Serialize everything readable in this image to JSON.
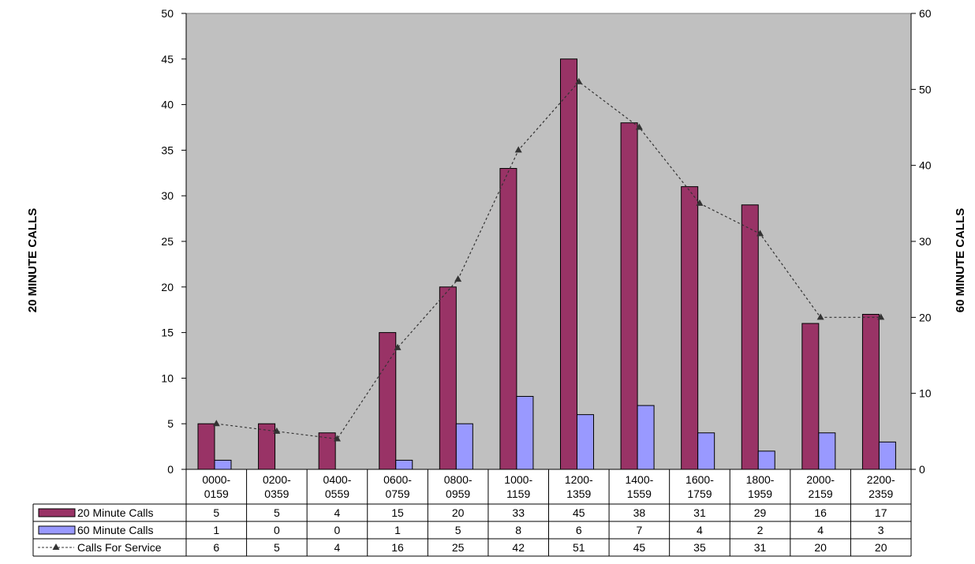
{
  "chart_data": {
    "type": "bar",
    "categories": [
      [
        "0000-",
        "0159"
      ],
      [
        "0200-",
        "0359"
      ],
      [
        "0400-",
        "0559"
      ],
      [
        "0600-",
        "0759"
      ],
      [
        "0800-",
        "0959"
      ],
      [
        "1000-",
        "1159"
      ],
      [
        "1200-",
        "1359"
      ],
      [
        "1400-",
        "1559"
      ],
      [
        "1600-",
        "1759"
      ],
      [
        "1800-",
        "1959"
      ],
      [
        "2000-",
        "2159"
      ],
      [
        "2200-",
        "2359"
      ]
    ],
    "series": [
      {
        "name": "20 Minute Calls",
        "type": "bar",
        "axis": "left",
        "color": "#993366",
        "values": [
          5,
          5,
          4,
          15,
          20,
          33,
          45,
          38,
          31,
          29,
          16,
          17
        ]
      },
      {
        "name": "60 Minute Calls",
        "type": "bar",
        "axis": "left",
        "color": "#9999ff",
        "values": [
          1,
          0,
          0,
          1,
          5,
          8,
          6,
          7,
          4,
          2,
          4,
          3
        ]
      },
      {
        "name": "Calls For Service",
        "type": "line",
        "axis": "right",
        "color": "#333333",
        "values": [
          6,
          5,
          4,
          16,
          25,
          42,
          51,
          45,
          35,
          31,
          20,
          20
        ]
      }
    ],
    "ylabel_left": "20 MINUTE CALLS",
    "ylabel_right": "60 MINUTE CALLS",
    "ylim_left": [
      0,
      50
    ],
    "ylim_right": [
      0,
      60
    ],
    "yticks_left": [
      0,
      5,
      10,
      15,
      20,
      25,
      30,
      35,
      40,
      45,
      50
    ],
    "yticks_right": [
      0,
      10,
      20,
      30,
      40,
      50,
      60
    ],
    "plot_background": "#c0c0c0",
    "grid": false,
    "legend": "data-table"
  }
}
